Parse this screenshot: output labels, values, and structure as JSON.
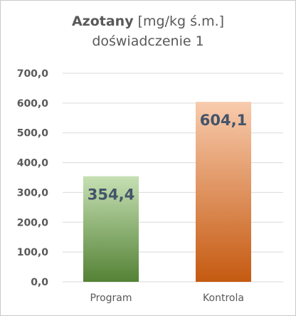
{
  "chart_data": {
    "type": "bar",
    "title_bold": "Azotany",
    "title_unit": "[mg/kg ś.m.]",
    "subtitle": "doświadczenie 1",
    "categories": [
      "Program",
      "Kontrola"
    ],
    "values": [
      354.4,
      604.1
    ],
    "value_labels": [
      "354,4",
      "604,1"
    ],
    "ylim": [
      0,
      700
    ],
    "yticks": [
      "0,0",
      "100,0",
      "200,0",
      "300,0",
      "400,0",
      "500,0",
      "600,0",
      "700,0"
    ],
    "grid": true,
    "legend": "none",
    "colors": {
      "program_top": "#c6e0b4",
      "program_bottom": "#548235",
      "kontrola_top": "#f8cbad",
      "kontrola_bottom": "#c55a11",
      "gridline": "#d9d9d9",
      "axis_text": "#595959",
      "value_label": "#44546a"
    }
  }
}
